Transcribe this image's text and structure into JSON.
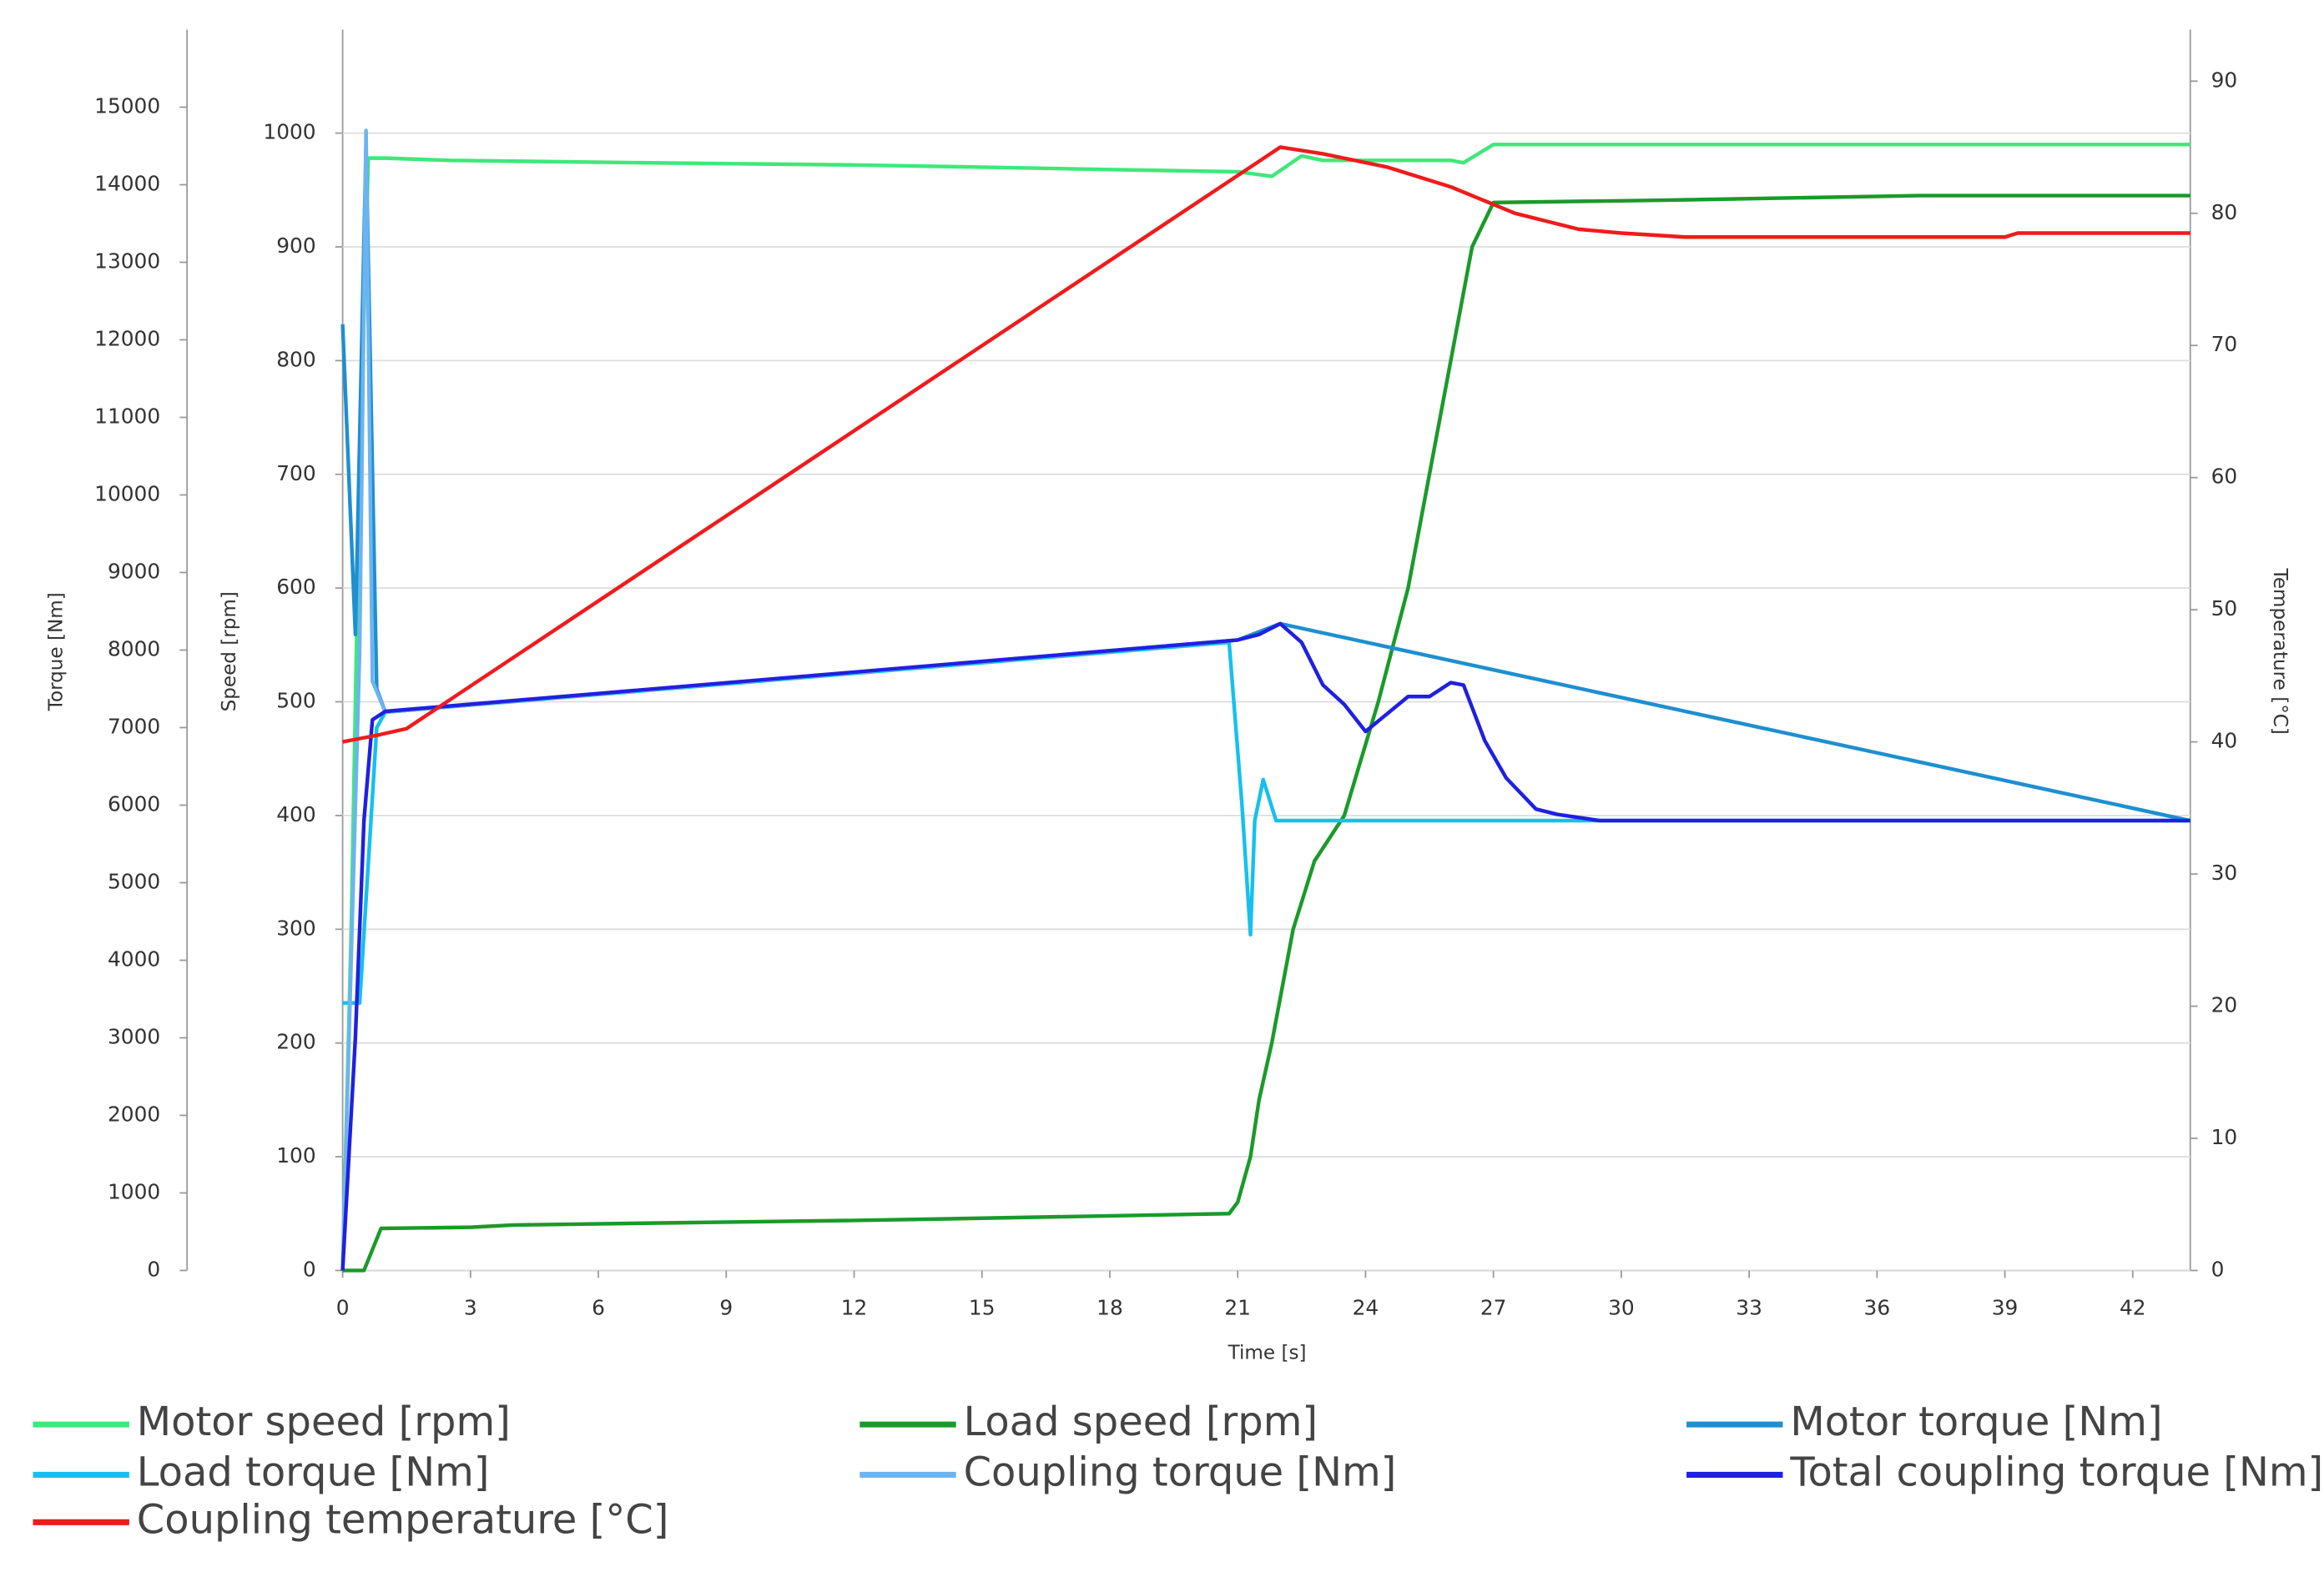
{
  "chart_data": {
    "type": "line",
    "xlabel": "Time [s]",
    "ylabel": "Speed [rpm]",
    "y2label": "Temperature [°C]",
    "y3label": "Torque [Nm]",
    "xlim": [
      0,
      43.35
    ],
    "xticks": [
      0,
      3,
      6,
      9,
      12,
      15,
      18,
      21,
      24,
      27,
      30,
      33,
      36,
      39,
      42
    ],
    "ylim": [
      0,
      1091
    ],
    "yticks": [
      0,
      100,
      200,
      300,
      400,
      500,
      600,
      700,
      800,
      900,
      1000
    ],
    "y2lim": [
      0,
      93.9
    ],
    "y2ticks": [
      0,
      10,
      20,
      30,
      40,
      50,
      60,
      70,
      80,
      90
    ],
    "y3lim": [
      0,
      16000
    ],
    "y3ticks": [
      0,
      1000,
      2000,
      3000,
      4000,
      5000,
      6000,
      7000,
      8000,
      9000,
      10000,
      11000,
      12000,
      13000,
      14000,
      15000
    ],
    "grid": true,
    "series": [
      {
        "name": "Motor speed [rpm]",
        "color": "#3ee87a",
        "axis": "y",
        "x": [
          0,
          0.2,
          0.4,
          0.6,
          1,
          2.5,
          7,
          12,
          15,
          18,
          21,
          21.8,
          22.5,
          23,
          26,
          26.3,
          27,
          43.35
        ],
        "values": [
          0,
          300,
          700,
          978,
          978,
          976,
          974,
          972,
          970,
          968,
          966,
          962,
          980,
          976,
          976,
          974,
          990,
          990
        ]
      },
      {
        "name": "Load speed [rpm]",
        "color": "#1a9a2a",
        "axis": "y",
        "x": [
          0,
          0.5,
          0.9,
          3,
          4,
          8,
          12,
          15,
          18,
          20.8,
          21,
          21.3,
          21.5,
          21.8,
          22.3,
          22.8,
          23.5,
          24.3,
          25,
          25.5,
          26,
          26.5,
          27,
          31,
          37,
          43.35
        ],
        "values": [
          0,
          0,
          37,
          38,
          40,
          42,
          44,
          46,
          48,
          50,
          60,
          100,
          150,
          200,
          300,
          360,
          400,
          500,
          600,
          700,
          800,
          900,
          939,
          941,
          945,
          945
        ]
      },
      {
        "name": "Motor torque [Nm]",
        "color": "#1e8fd0",
        "axis": "y3",
        "x": [
          0,
          0.3,
          0.55,
          0.8,
          1,
          21,
          22,
          43.35
        ],
        "values": [
          12200,
          8200,
          14500,
          7500,
          7200,
          8130,
          8340,
          5800
        ]
      },
      {
        "name": "Load torque [Nm]",
        "color": "#16c0ee",
        "axis": "y3",
        "x": [
          0,
          0.4,
          0.8,
          1,
          20.8,
          21.1,
          21.3,
          21.4,
          21.6,
          21.9,
          43.35
        ],
        "values": [
          3450,
          3450,
          7000,
          7200,
          8100,
          6000,
          4330,
          5800,
          6330,
          5800,
          5800
        ]
      },
      {
        "name": "Coupling torque [Nm]",
        "color": "#6cb4f0",
        "axis": "y3",
        "x": [
          0,
          0.4,
          0.55,
          0.7,
          1,
          21
        ],
        "values": [
          0,
          8000,
          14700,
          7600,
          7200,
          8130
        ]
      },
      {
        "name": "Total coupling torque [Nm]",
        "color": "#2020e0",
        "axis": "y3",
        "x": [
          0,
          0.3,
          0.5,
          0.7,
          1,
          21,
          21.5,
          22,
          22.5,
          23,
          23.5,
          24,
          25,
          25.5,
          26,
          26.3,
          26.8,
          27.3,
          28,
          28.5,
          29.5,
          43.35
        ],
        "values": [
          0,
          3000,
          5800,
          7100,
          7210,
          8130,
          8200,
          8340,
          8100,
          7550,
          7300,
          6950,
          7400,
          7400,
          7580,
          7550,
          6830,
          6350,
          5950,
          5880,
          5800,
          5800
        ]
      },
      {
        "name": "Coupling temperature [°C]",
        "color": "#ee1c1c",
        "axis": "y2",
        "x": [
          0,
          0.8,
          1.5,
          22,
          23,
          24.5,
          26,
          27.5,
          29,
          30,
          31.5,
          39,
          39.3,
          43.35
        ],
        "values": [
          40,
          40.5,
          41,
          85,
          84.5,
          83.5,
          82,
          80,
          78.8,
          78.5,
          78.2,
          78.2,
          78.5,
          78.5
        ]
      }
    ]
  }
}
